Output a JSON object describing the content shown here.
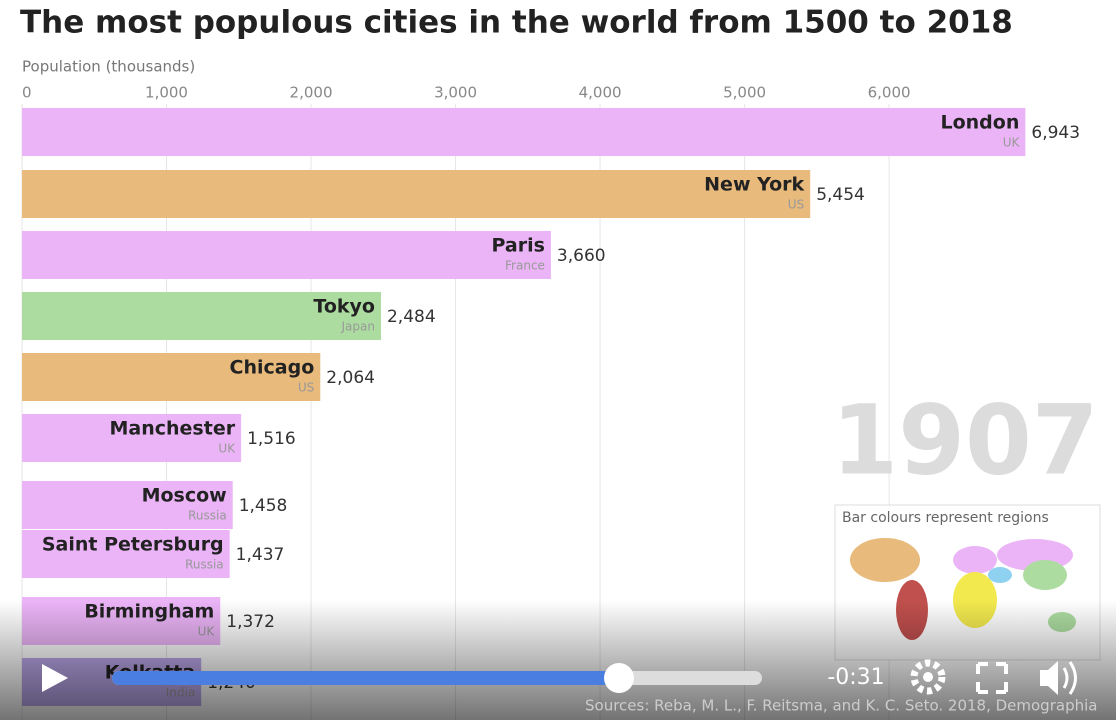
{
  "chart_data": {
    "type": "bar",
    "orientation": "horizontal",
    "title": "The most populous cities in the world from 1500 to 2018",
    "x_label": "Population (thousands)",
    "categories": [
      "London",
      "New York",
      "Paris",
      "Tokyo",
      "Chicago",
      "Manchester",
      "Moscow",
      "Saint Petersburg",
      "Birmingham",
      "Kolkatta"
    ],
    "subtitles": [
      "UK",
      "US",
      "France",
      "Japan",
      "US",
      "UK",
      "Russia",
      "Russia",
      "UK",
      "India"
    ],
    "values": [
      6943,
      5454,
      3660,
      2484,
      2064,
      1516,
      1458,
      1437,
      1372,
      1240
    ],
    "value_labels": [
      "6,943",
      "5,454",
      "3,660",
      "2,484",
      "2,064",
      "1,516",
      "1,458",
      "1,437",
      "1,372",
      "1,240"
    ],
    "colors": [
      "#ebb4f7",
      "#e8ba7c",
      "#ebb4f7",
      "#acdca0",
      "#e8ba7c",
      "#ebb4f7",
      "#ebb4f7",
      "#ebb4f7",
      "#ebb4f7",
      "#b9a6e8"
    ],
    "xlim": [
      0,
      7570
    ],
    "xticks": [
      0,
      {
        "value": 1000,
        "label": "1,000"
      },
      {
        "value": 2000,
        "label": "2,000"
      },
      {
        "value": 3000,
        "label": "3,000"
      },
      {
        "value": 4000,
        "label": "4,000"
      },
      {
        "value": 5000,
        "label": "5,000"
      },
      {
        "value": 6000,
        "label": "6,000"
      }
    ],
    "grid": true,
    "year": "1907",
    "legend_title": "Bar colours represent regions",
    "source": "Sources: Reba, M. L., F. Reitsma, and K. C. Seto. 2018, Demographia"
  },
  "player": {
    "time": "-0:31",
    "progress": 0.78
  }
}
